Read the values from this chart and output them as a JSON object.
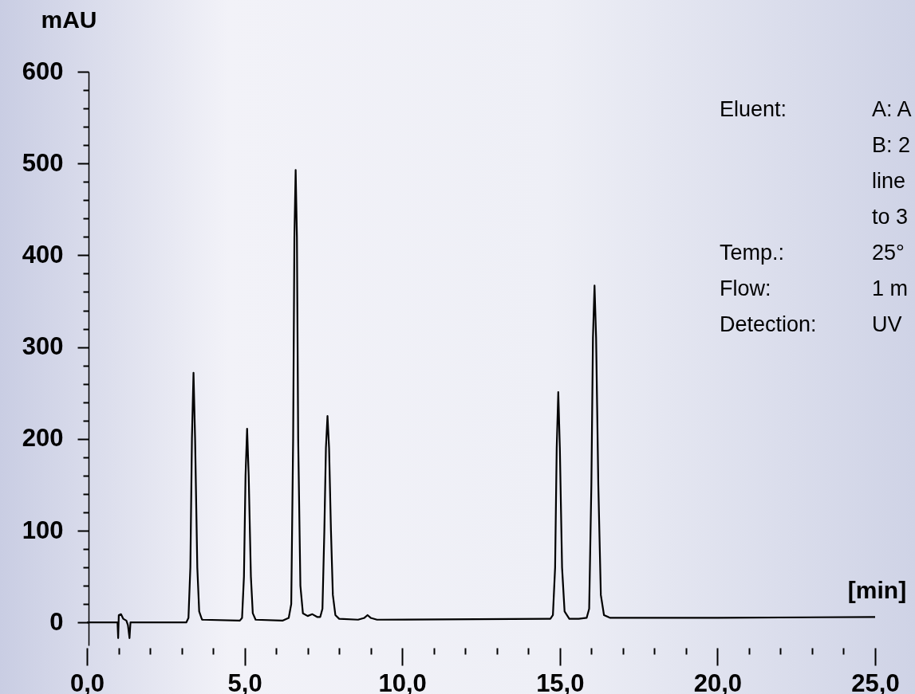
{
  "chart_data": {
    "type": "line",
    "xlabel": "[min]",
    "ylabel": "mAU",
    "xlim": [
      0,
      25
    ],
    "ylim": [
      -25,
      600
    ],
    "xticks": [
      {
        "value": 0,
        "label": "0,0"
      },
      {
        "value": 1,
        "label": null
      },
      {
        "value": 2,
        "label": null
      },
      {
        "value": 3,
        "label": null
      },
      {
        "value": 4,
        "label": null
      },
      {
        "value": 5,
        "label": "5,0"
      },
      {
        "value": 6,
        "label": null
      },
      {
        "value": 7,
        "label": null
      },
      {
        "value": 8,
        "label": null
      },
      {
        "value": 9,
        "label": null
      },
      {
        "value": 10,
        "label": "10,0"
      },
      {
        "value": 11,
        "label": null
      },
      {
        "value": 12,
        "label": null
      },
      {
        "value": 13,
        "label": null
      },
      {
        "value": 14,
        "label": null
      },
      {
        "value": 15,
        "label": "15,0"
      },
      {
        "value": 16,
        "label": null
      },
      {
        "value": 17,
        "label": null
      },
      {
        "value": 18,
        "label": null
      },
      {
        "value": 19,
        "label": null
      },
      {
        "value": 20,
        "label": "20,0"
      },
      {
        "value": 21,
        "label": null
      },
      {
        "value": 22,
        "label": null
      },
      {
        "value": 23,
        "label": null
      },
      {
        "value": 24,
        "label": null
      },
      {
        "value": 25,
        "label": "25,0"
      }
    ],
    "yticks": [
      0,
      {
        "value": 20,
        "label": null
      },
      {
        "value": 40,
        "label": null
      },
      {
        "value": 60,
        "label": null
      },
      {
        "value": 80,
        "label": null
      },
      100,
      {
        "value": 120,
        "label": null
      },
      {
        "value": 140,
        "label": null
      },
      {
        "value": 160,
        "label": null
      },
      {
        "value": 180,
        "label": null
      },
      200,
      {
        "value": 220,
        "label": null
      },
      {
        "value": 240,
        "label": null
      },
      {
        "value": 260,
        "label": null
      },
      {
        "value": 280,
        "label": null
      },
      300,
      {
        "value": 320,
        "label": null
      },
      {
        "value": 340,
        "label": null
      },
      {
        "value": 360,
        "label": null
      },
      {
        "value": 380,
        "label": null
      },
      400,
      {
        "value": 420,
        "label": null
      },
      {
        "value": 440,
        "label": null
      },
      {
        "value": 460,
        "label": null
      },
      {
        "value": 480,
        "label": null
      },
      500,
      {
        "value": 520,
        "label": null
      },
      {
        "value": 540,
        "label": null
      },
      {
        "value": 560,
        "label": null
      },
      {
        "value": 580,
        "label": null
      },
      600
    ],
    "grid": false,
    "marker": "none",
    "line_style": "solid",
    "annotations": [
      "Eluent: A: A",
      "B: 2",
      "line",
      "to 3",
      "Temp.: 25°",
      "Flow: 1 m",
      "Detection: UV"
    ],
    "series": [
      {
        "color": "#000000",
        "x": [
          0,
          0.97,
          0.99,
          1.01,
          1.08,
          1.15,
          1.25,
          1.3,
          1.35,
          1.38,
          3.0,
          3.15,
          3.22,
          3.28,
          3.33,
          3.38,
          3.43,
          3.5,
          3.56,
          3.65,
          4.85,
          4.92,
          4.98,
          5.03,
          5.08,
          5.13,
          5.2,
          5.26,
          5.35,
          6.2,
          6.4,
          6.48,
          6.54,
          6.58,
          6.62,
          6.66,
          6.7,
          6.77,
          6.85,
          7.0,
          7.15,
          7.3,
          7.4,
          7.47,
          7.53,
          7.58,
          7.63,
          7.68,
          7.74,
          7.8,
          7.88,
          8.0,
          8.6,
          8.8,
          8.9,
          9.0,
          9.2,
          14.6,
          14.7,
          14.78,
          14.85,
          14.9,
          14.95,
          15.0,
          15.07,
          15.15,
          15.3,
          15.6,
          15.85,
          15.93,
          16.0,
          16.05,
          16.1,
          16.15,
          16.22,
          16.3,
          16.4,
          16.6,
          20,
          25
        ],
        "values": [
          0,
          0,
          -17,
          8,
          9,
          4,
          2,
          -3,
          -17,
          0,
          0,
          0,
          5,
          60,
          200,
          272,
          200,
          60,
          12,
          3,
          2,
          5,
          50,
          160,
          211,
          160,
          50,
          10,
          3,
          2,
          5,
          20,
          200,
          420,
          493,
          420,
          200,
          40,
          10,
          7,
          9,
          6,
          6,
          15,
          100,
          190,
          225,
          190,
          100,
          30,
          8,
          4,
          3,
          5,
          8,
          5,
          3,
          4,
          4,
          8,
          60,
          190,
          251,
          190,
          60,
          12,
          4,
          4,
          5,
          15,
          150,
          310,
          367,
          310,
          150,
          30,
          8,
          5,
          5,
          6
        ]
      }
    ]
  }
}
